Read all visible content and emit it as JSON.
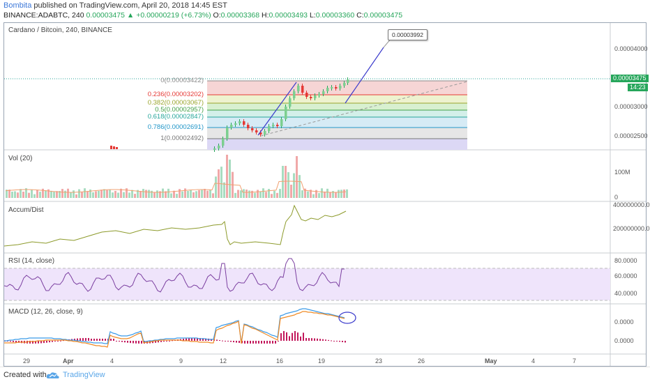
{
  "header": {
    "author": "Bombita",
    "published": "published on TradingView.com, April 20, 2018 14:45 EST"
  },
  "ticker": {
    "symbol": "BINANCE:ADABTC, 240",
    "last": "0.00003475",
    "change": "+0.00000219 (+6.73%)",
    "open_label": "O:",
    "open": "0.00003368",
    "high_label": "H:",
    "high": "0.00003493",
    "low_label": "L:",
    "low": "0.00003360",
    "close_label": "C:",
    "close": "0.00003475"
  },
  "main_pane": {
    "title": "Cardano / Bitcoin, 240, BINANCE",
    "axis_ticks": [
      "0.00004000",
      "0.00003000",
      "0.00002500"
    ],
    "price_tag": "0.00003475",
    "time_tag": "14:23",
    "callout": "0.00003992",
    "fib_levels": [
      {
        "label": "0(0.00003422)",
        "color": "#8a8a8a"
      },
      {
        "label": "0.236(0.00003202)",
        "color": "#e53935"
      },
      {
        "label": "0.382(0.00003067)",
        "color": "#9aa52d"
      },
      {
        "label": "0.5(0.00002957)",
        "color": "#43a047"
      },
      {
        "label": "0.618(0.00002847)",
        "color": "#26a69a"
      },
      {
        "label": "0.786(0.00002691)",
        "color": "#2196c8"
      },
      {
        "label": "1(0.00002492)",
        "color": "#777777"
      }
    ]
  },
  "volume_pane": {
    "title": "Vol (20)",
    "axis_ticks": [
      "100M",
      "0"
    ]
  },
  "accum_pane": {
    "title": "Accum/Dist",
    "axis_ticks": [
      "400000000.0",
      "200000000.0"
    ]
  },
  "rsi_pane": {
    "title": "RSI (14, close)",
    "axis_ticks": [
      "80.0000",
      "60.0000",
      "40.0000"
    ]
  },
  "macd_pane": {
    "title": "MACD (12, 26, close, 9)",
    "axis_ticks": [
      "0.0000",
      "0.0000"
    ]
  },
  "time_axis": [
    "29",
    "Apr",
    "4",
    "9",
    "12",
    "16",
    "19",
    "23",
    "26",
    "May",
    "4",
    "7"
  ],
  "footer": {
    "made": "Created with",
    "brand": "TradingView"
  },
  "colors": {
    "up": "#26a65b",
    "down": "#e53935",
    "rsi": "#7b3fa0",
    "accum": "#8c9a2a",
    "macd": "#3c9be8",
    "signal": "#f08a24",
    "projection": "#3b3bcc"
  }
}
